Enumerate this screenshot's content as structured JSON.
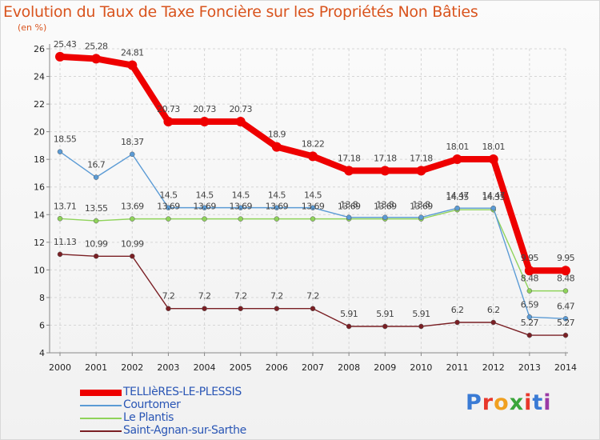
{
  "title": "Evolution du Taux de Taxe Foncière sur les Propriétés Non Bâties",
  "unit": "(en %)",
  "logo": {
    "text": "Proxiti",
    "colors": [
      "#3a7bd5",
      "#e8372b",
      "#f0a020",
      "#3aa53a",
      "#e8372b",
      "#3a7bd5",
      "#9b3aa5"
    ]
  },
  "chart_data": {
    "type": "line",
    "x": [
      "2000",
      "2001",
      "2002",
      "2003",
      "2004",
      "2005",
      "2006",
      "2007",
      "2008",
      "2009",
      "2010",
      "2011",
      "2012",
      "2013",
      "2014"
    ],
    "ylim": [
      4,
      26
    ],
    "yticks": [
      4,
      6,
      8,
      10,
      12,
      14,
      16,
      18,
      20,
      22,
      24,
      26
    ],
    "grid": true,
    "legend": "bottom-left",
    "series": [
      {
        "name": "TELLIèRES-LE-PLESSIS",
        "color": "#ee0000",
        "values": [
          25.43,
          25.28,
          24.81,
          20.73,
          20.73,
          20.73,
          18.9,
          18.22,
          17.18,
          17.18,
          17.18,
          18.01,
          18.01,
          9.95,
          9.95
        ]
      },
      {
        "name": "Courtomer",
        "color": "#5b9bd5",
        "values": [
          18.55,
          16.7,
          18.37,
          14.5,
          14.5,
          14.5,
          14.5,
          14.5,
          13.8,
          13.8,
          13.8,
          14.47,
          14.47,
          6.59,
          6.47
        ],
        "labels": [
          "18.55",
          "16.7",
          "18.37",
          "14.5",
          "14.5",
          "14.5",
          "14.5",
          "14.5",
          "13.8",
          "13.8",
          "13.8",
          "14.47",
          "14.47",
          "6.59",
          "6.47"
        ]
      },
      {
        "name": "Le Plantis",
        "color": "#8fd35a",
        "values": [
          13.71,
          13.55,
          13.69,
          13.69,
          13.69,
          13.69,
          13.69,
          13.69,
          13.69,
          13.69,
          13.69,
          14.35,
          14.35,
          8.48,
          8.48
        ],
        "labels": [
          "13.71",
          "13.55",
          "13.69",
          "13.69",
          "13.69",
          "13.69",
          "13.69",
          "13.69",
          "13.69",
          "13.69",
          "13.69",
          "14.35",
          "14.35",
          "8.48",
          "8.48"
        ]
      },
      {
        "name": "Saint-Agnan-sur-Sarthe",
        "color": "#7a1f24",
        "values": [
          11.13,
          10.99,
          10.99,
          7.2,
          7.2,
          7.2,
          7.2,
          7.2,
          5.91,
          5.91,
          5.91,
          6.2,
          6.2,
          5.27,
          5.27
        ]
      }
    ]
  }
}
